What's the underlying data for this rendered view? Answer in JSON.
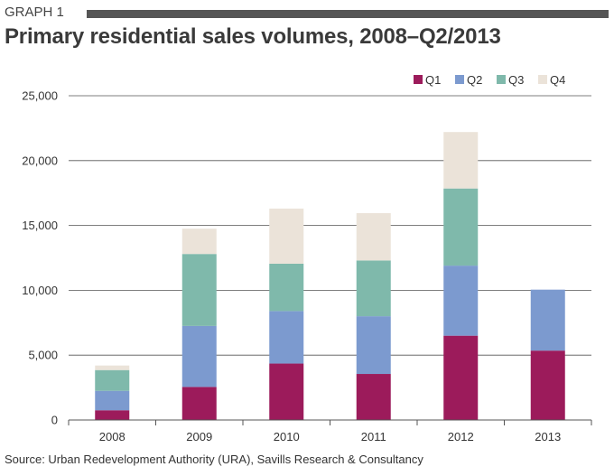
{
  "header": {
    "graph_label": "GRAPH 1",
    "title": "Primary residential sales volumes, 2008–Q2/2013"
  },
  "source": "Source: Urban Redevelopment Authority (URA), Savills Research & Consultancy",
  "chart_data": {
    "type": "bar",
    "stacked": true,
    "title": "Primary residential sales volumes, 2008–Q2/2013",
    "xlabel": "",
    "ylabel": "",
    "categories": [
      "2008",
      "2009",
      "2010",
      "2011",
      "2012",
      "2013"
    ],
    "ylim": [
      0,
      25000
    ],
    "yticks": [
      0,
      5000,
      10000,
      15000,
      20000,
      25000
    ],
    "ytick_labels": [
      "0",
      "5,000",
      "10,000",
      "15,000",
      "20,000",
      "25,000"
    ],
    "grid": true,
    "legend_position": "top-right",
    "series": [
      {
        "name": "Q1",
        "color": "#9c1b5b",
        "values": [
          750,
          2550,
          4350,
          3550,
          6500,
          5350
        ]
      },
      {
        "name": "Q2",
        "color": "#7c9acf",
        "values": [
          1500,
          4700,
          4050,
          4450,
          5400,
          4700
        ]
      },
      {
        "name": "Q3",
        "color": "#7fb9ab",
        "values": [
          1600,
          5550,
          3650,
          4300,
          5950,
          0
        ]
      },
      {
        "name": "Q4",
        "color": "#ebe3d9",
        "values": [
          350,
          1950,
          4250,
          3650,
          4350,
          0
        ]
      }
    ]
  }
}
